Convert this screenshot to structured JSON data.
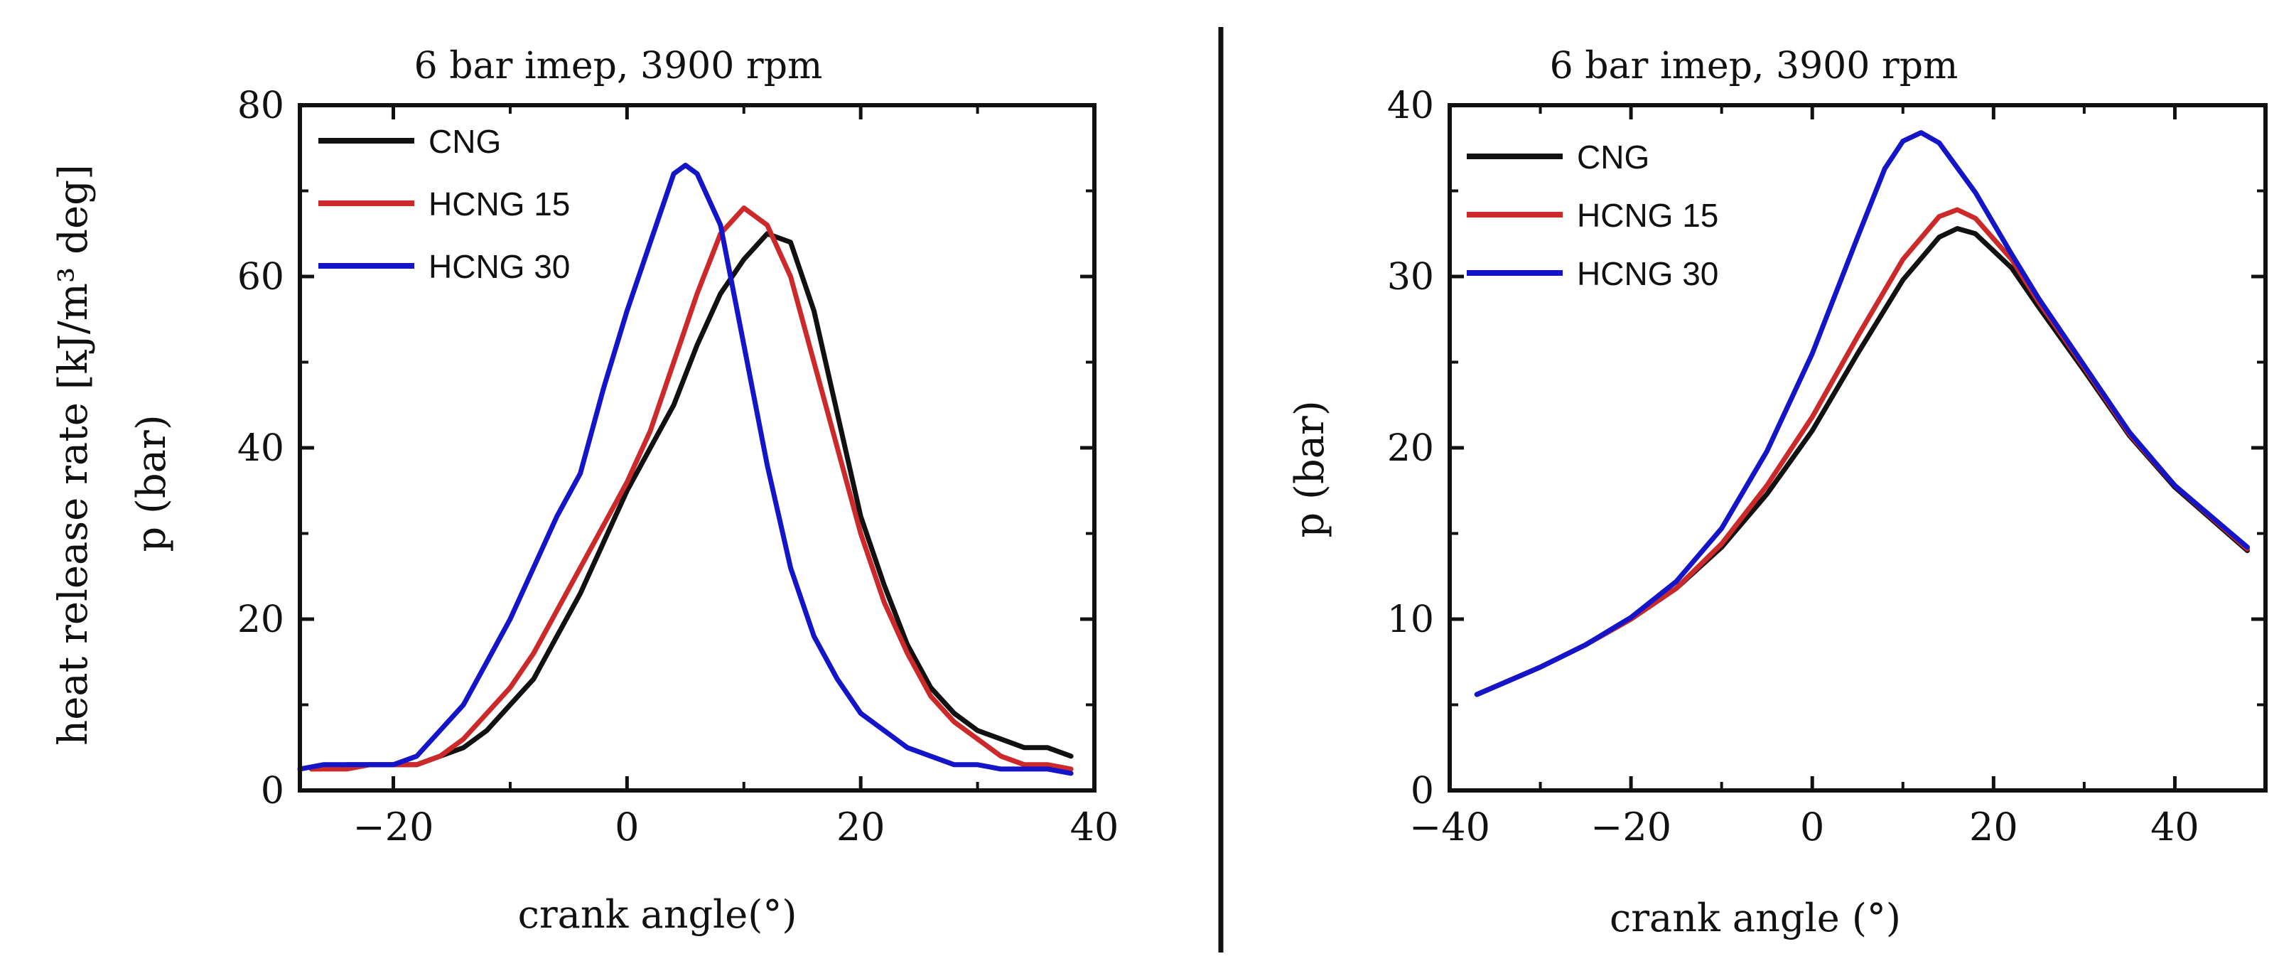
{
  "colors": {
    "CNG": "#111111",
    "HCNG 15": "#cc2a2a",
    "HCNG 30": "#1414c8",
    "axis": "#111111",
    "divider": "#111111"
  },
  "chart_data": [
    {
      "type": "line",
      "title": "6 bar imep, 3900 rpm",
      "xlabel": "crank angle(°)",
      "ylabel": "heat release rate [kJ/m³ deg]",
      "ylabel_overlay": "p (bar)",
      "xlim": [
        -28,
        40
      ],
      "ylim": [
        0,
        80
      ],
      "xticks": [
        -20,
        0,
        20,
        40
      ],
      "xtick_labels": [
        "−20",
        "0",
        "20",
        "40"
      ],
      "yticks": [
        0,
        20,
        40,
        60,
        80
      ],
      "ytick_labels": [
        "0",
        "20",
        "40",
        "60",
        "80"
      ],
      "legend": "top-left",
      "series": [
        {
          "name": "CNG",
          "x": [
            -27,
            -24,
            -22,
            -20,
            -18,
            -16,
            -14,
            -12,
            -10,
            -8,
            -6,
            -4,
            -2,
            0,
            2,
            4,
            6,
            8,
            10,
            12,
            14,
            16,
            18,
            20,
            22,
            24,
            26,
            28,
            30,
            32,
            34,
            36,
            38
          ],
          "y": [
            2.5,
            3,
            3,
            3,
            3,
            4,
            5,
            7,
            10,
            13,
            18,
            23,
            29,
            35,
            40,
            45,
            52,
            58,
            62,
            65,
            64,
            56,
            44,
            32,
            24,
            17,
            12,
            9,
            7,
            6,
            5,
            5,
            4
          ]
        },
        {
          "name": "HCNG 15",
          "x": [
            -27,
            -24,
            -22,
            -20,
            -18,
            -16,
            -14,
            -12,
            -10,
            -8,
            -6,
            -4,
            -2,
            0,
            2,
            4,
            6,
            8,
            10,
            12,
            14,
            16,
            18,
            20,
            22,
            24,
            26,
            28,
            30,
            32,
            34,
            36,
            38
          ],
          "y": [
            2.5,
            2.5,
            3,
            3,
            3,
            4,
            6,
            9,
            12,
            16,
            21,
            26,
            31,
            36,
            42,
            50,
            58,
            65,
            68,
            66,
            60,
            50,
            40,
            30,
            22,
            16,
            11,
            8,
            6,
            4,
            3,
            3,
            2.5
          ]
        },
        {
          "name": "HCNG 30",
          "x": [
            -28,
            -26,
            -24,
            -22,
            -20,
            -18,
            -16,
            -14,
            -12,
            -10,
            -8,
            -6,
            -4,
            -2,
            0,
            2,
            4,
            5,
            6,
            8,
            10,
            12,
            14,
            16,
            18,
            20,
            22,
            24,
            26,
            28,
            30,
            32,
            34,
            36,
            38
          ],
          "y": [
            2.5,
            3,
            3,
            3,
            3,
            4,
            7,
            10,
            15,
            20,
            26,
            32,
            37,
            47,
            56,
            64,
            72,
            73,
            72,
            66,
            52,
            38,
            26,
            18,
            13,
            9,
            7,
            5,
            4,
            3,
            3,
            2.5,
            2.5,
            2.5,
            2
          ]
        }
      ]
    },
    {
      "type": "line",
      "title": "6 bar imep, 3900 rpm",
      "xlabel": "crank angle (°)",
      "ylabel": "p (bar)",
      "xlim": [
        -40,
        50
      ],
      "ylim": [
        0,
        40
      ],
      "xticks": [
        -40,
        -20,
        0,
        20,
        40
      ],
      "xtick_labels": [
        "−40",
        "−20",
        "0",
        "20",
        "40"
      ],
      "yticks": [
        0,
        10,
        20,
        30,
        40
      ],
      "ytick_labels": [
        "0",
        "10",
        "20",
        "30",
        "40"
      ],
      "legend": "top-left",
      "series": [
        {
          "name": "CNG",
          "x": [
            -37,
            -30,
            -25,
            -20,
            -15,
            -10,
            -5,
            0,
            5,
            10,
            14,
            16,
            18,
            22,
            25,
            30,
            35,
            40,
            48
          ],
          "y": [
            5.6,
            7.2,
            8.5,
            10,
            11.8,
            14.2,
            17.3,
            21,
            25.5,
            29.8,
            32.3,
            32.8,
            32.5,
            30.5,
            28.2,
            24.5,
            20.7,
            17.7,
            14
          ]
        },
        {
          "name": "HCNG 15",
          "x": [
            -37,
            -30,
            -25,
            -20,
            -15,
            -10,
            -5,
            0,
            5,
            10,
            14,
            16,
            18,
            22,
            25,
            30,
            35,
            40,
            48
          ],
          "y": [
            5.6,
            7.2,
            8.5,
            10,
            11.8,
            14.4,
            17.8,
            21.8,
            26.5,
            31,
            33.5,
            33.9,
            33.4,
            31,
            28.5,
            24.7,
            20.8,
            17.8,
            14.1
          ]
        },
        {
          "name": "HCNG 30",
          "x": [
            -37,
            -30,
            -25,
            -20,
            -15,
            -10,
            -5,
            0,
            5,
            8,
            10,
            12,
            14,
            18,
            22,
            25,
            30,
            35,
            40,
            48
          ],
          "y": [
            5.6,
            7.2,
            8.5,
            10.1,
            12.2,
            15.3,
            19.8,
            25.5,
            32.3,
            36.3,
            37.9,
            38.4,
            37.8,
            34.9,
            31.3,
            28.7,
            24.8,
            20.9,
            17.8,
            14.2
          ]
        }
      ]
    }
  ]
}
